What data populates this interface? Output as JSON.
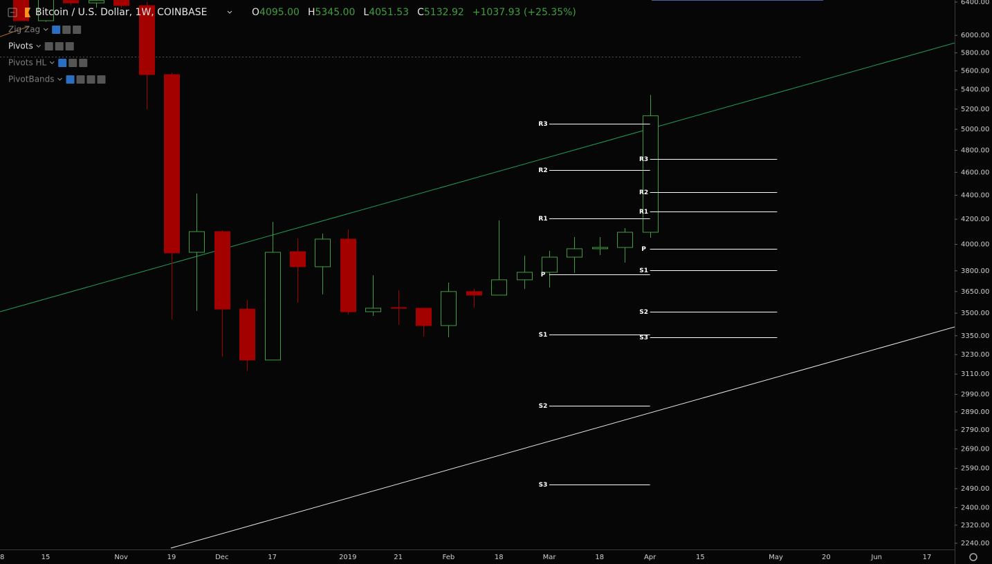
{
  "chart_data": {
    "type": "candlestick",
    "title": "Bitcoin / U.S. Dollar, 1W, COINBASE",
    "ohlc": [
      {
        "label": "O",
        "value": "4095.00"
      },
      {
        "label": "H",
        "value": "5345.00"
      },
      {
        "label": "L",
        "value": "4051.53"
      },
      {
        "label": "C",
        "value": "5132.92"
      }
    ],
    "change": "+1037.93 (+25.35%)",
    "indicators": [
      "Zig Zag",
      "Pivots",
      "Pivots HL",
      "PivotBands"
    ],
    "categories": [
      "8",
      null,
      "15",
      null,
      null,
      "Nov",
      null,
      "19",
      null,
      "Dec",
      null,
      "17",
      null,
      null,
      "2019",
      null,
      "21",
      null,
      "Feb",
      null,
      "18",
      null,
      "Mar",
      null,
      "18",
      null,
      "Apr",
      null,
      "15",
      null,
      null,
      "May",
      null,
      "20",
      null,
      "Jun",
      null,
      "17",
      null
    ],
    "open": [
      null,
      6550,
      6173,
      6420,
      6390,
      6470,
      6357,
      5560,
      3939,
      4100,
      3528,
      3196,
      3944,
      3830,
      4041,
      3510,
      3538,
      3534,
      3417,
      3650,
      3625,
      3734,
      3789,
      3902,
      3966,
      3976,
      4095,
      null,
      null,
      null,
      null,
      null,
      null,
      null,
      null,
      null,
      null,
      null,
      null
    ],
    "high": [
      null,
      6600,
      6500,
      6480,
      6500,
      6520,
      6400,
      5580,
      4415,
      4112,
      3591,
      4179,
      4046,
      4084,
      4117,
      3768,
      3659,
      3534,
      3714,
      3669,
      4190,
      3913,
      3950,
      4057,
      4057,
      4128,
      5345,
      null,
      null,
      null,
      null,
      null,
      null,
      null,
      null,
      null,
      null,
      null,
      null
    ],
    "low": [
      null,
      6173,
      6160,
      6360,
      6330,
      6330,
      5199,
      3459,
      3515,
      3217,
      3128,
      3196,
      3572,
      3630,
      3491,
      3482,
      3422,
      3345,
      3340,
      3538,
      3625,
      3669,
      3679,
      3784,
      3918,
      3861,
      4051.53,
      null,
      null,
      null,
      null,
      null,
      null,
      null,
      null,
      null,
      null,
      null,
      null
    ],
    "close": [
      null,
      6173,
      6460,
      6390,
      6420,
      6357,
      5560,
      3934,
      4100,
      3528,
      3196,
      3939,
      3830,
      4041,
      3510,
      3534,
      3534,
      3417,
      3650,
      3625,
      3734,
      3789,
      3902,
      3966,
      3976,
      4095,
      5132.92,
      null,
      null,
      null,
      null,
      null,
      null,
      null,
      null,
      null,
      null,
      null,
      null
    ],
    "up_color": "#3f9f3f",
    "down_color": "#a30000",
    "log_scale": true,
    "ylim": [
      2213,
      6426
    ],
    "yticks": [
      {
        "value": 6400,
        "label": "6400.00"
      },
      {
        "value": 6000,
        "label": "6000.00"
      },
      {
        "value": 5800,
        "label": "5800.00"
      },
      {
        "value": 5600,
        "label": "5600.00"
      },
      {
        "value": 5400,
        "label": "5400.00"
      },
      {
        "value": 5200,
        "label": "5200.00"
      },
      {
        "value": 5000,
        "label": "5000.00"
      },
      {
        "value": 4800,
        "label": "4800.00"
      },
      {
        "value": 4600,
        "label": "4600.00"
      },
      {
        "value": 4400,
        "label": "4400.00"
      },
      {
        "value": 4200,
        "label": "4200.00"
      },
      {
        "value": 4000,
        "label": "4000.00"
      },
      {
        "value": 3800,
        "label": "3800.00"
      },
      {
        "value": 3650,
        "label": "3650.00"
      },
      {
        "value": 3500,
        "label": "3500.00"
      },
      {
        "value": 3350,
        "label": "3350.00"
      },
      {
        "value": 3230,
        "label": "3230.00"
      },
      {
        "value": 3110,
        "label": "3110.00"
      },
      {
        "value": 2990,
        "label": "2990.00"
      },
      {
        "value": 2890,
        "label": "2890.00"
      },
      {
        "value": 2790,
        "label": "2790.00"
      },
      {
        "value": 2690,
        "label": "2690.00"
      },
      {
        "value": 2590,
        "label": "2590.00"
      },
      {
        "value": 2490,
        "label": "2490.00"
      },
      {
        "value": 2400,
        "label": "2400.00"
      },
      {
        "value": 2320,
        "label": "2320.00"
      },
      {
        "value": 2240,
        "label": "2240.00"
      }
    ],
    "pivots": [
      {
        "x": [
          22,
          26
        ],
        "levels": [
          {
            "label": "R3",
            "value": 5055
          },
          {
            "label": "R2",
            "value": 4621
          },
          {
            "label": "R1",
            "value": 4207
          },
          {
            "label": "P",
            "value": 3774
          },
          {
            "label": "S1",
            "value": 3358
          },
          {
            "label": "S2",
            "value": 2925
          },
          {
            "label": "S3",
            "value": 2510
          }
        ]
      },
      {
        "x": [
          26,
          31.05
        ],
        "levels": [
          {
            "label": "R3",
            "value": 4720
          },
          {
            "label": "R2",
            "value": 4426
          },
          {
            "label": "R1",
            "value": 4264
          },
          {
            "label": "P",
            "value": 3966
          },
          {
            "label": "S1",
            "value": 3804
          },
          {
            "label": "S2",
            "value": 3510
          },
          {
            "label": "S3",
            "value": 3340
          }
        ]
      }
    ],
    "trendlines": [
      {
        "color": "#1f9e5a",
        "points": [
          [
            0.19,
            3510
          ],
          [
            38.1,
            5913
          ]
        ]
      },
      {
        "color": "#e8e8e8",
        "points": [
          [
            6.97,
            2219
          ],
          [
            38.1,
            3408
          ]
        ]
      }
    ]
  }
}
